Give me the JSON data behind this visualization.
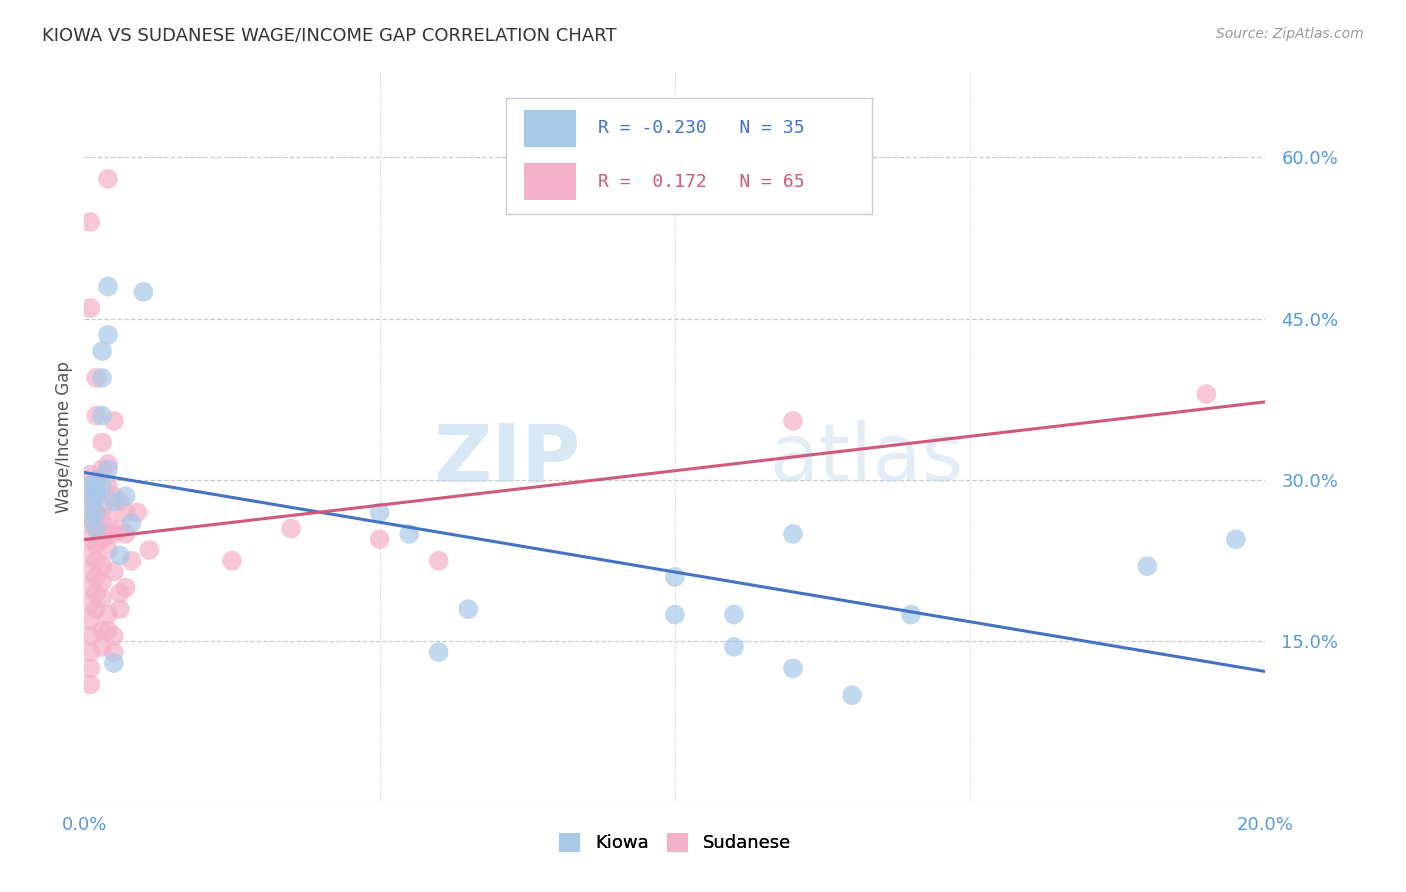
{
  "title": "KIOWA VS SUDANESE WAGE/INCOME GAP CORRELATION CHART",
  "source": "Source: ZipAtlas.com",
  "ylabel": "Wage/Income Gap",
  "xmin": 0.0,
  "xmax": 0.2,
  "ymin": 0.0,
  "ymax": 0.68,
  "yticks": [
    0.15,
    0.3,
    0.45,
    0.6
  ],
  "ytick_labels": [
    "15.0%",
    "30.0%",
    "45.0%",
    "60.0%"
  ],
  "xticks": [
    0.0,
    0.05,
    0.1,
    0.15,
    0.2
  ],
  "xtick_labels": [
    "0.0%",
    "",
    "",
    "",
    "20.0%"
  ],
  "kiowa_color": "#a8c8e8",
  "sudanese_color": "#f4b0c8",
  "kiowa_line_color": "#4472c4",
  "sudanese_line_color": "#d05878",
  "watermark_zip": "ZIP",
  "watermark_atlas": "atlas",
  "background_color": "#ffffff",
  "kiowa_points": [
    [
      0.001,
      0.295
    ],
    [
      0.001,
      0.28
    ],
    [
      0.001,
      0.265
    ],
    [
      0.002,
      0.3
    ],
    [
      0.002,
      0.285
    ],
    [
      0.002,
      0.27
    ],
    [
      0.002,
      0.255
    ],
    [
      0.002,
      0.29
    ],
    [
      0.003,
      0.42
    ],
    [
      0.003,
      0.395
    ],
    [
      0.003,
      0.36
    ],
    [
      0.003,
      0.295
    ],
    [
      0.004,
      0.435
    ],
    [
      0.004,
      0.31
    ],
    [
      0.004,
      0.48
    ],
    [
      0.005,
      0.28
    ],
    [
      0.005,
      0.13
    ],
    [
      0.006,
      0.23
    ],
    [
      0.007,
      0.285
    ],
    [
      0.008,
      0.26
    ],
    [
      0.01,
      0.475
    ],
    [
      0.05,
      0.27
    ],
    [
      0.055,
      0.25
    ],
    [
      0.06,
      0.14
    ],
    [
      0.065,
      0.18
    ],
    [
      0.1,
      0.21
    ],
    [
      0.1,
      0.175
    ],
    [
      0.11,
      0.175
    ],
    [
      0.11,
      0.145
    ],
    [
      0.12,
      0.25
    ],
    [
      0.12,
      0.125
    ],
    [
      0.13,
      0.1
    ],
    [
      0.14,
      0.175
    ],
    [
      0.18,
      0.22
    ],
    [
      0.195,
      0.245
    ]
  ],
  "sudanese_points": [
    [
      0.001,
      0.54
    ],
    [
      0.001,
      0.46
    ],
    [
      0.001,
      0.305
    ],
    [
      0.001,
      0.29
    ],
    [
      0.001,
      0.275
    ],
    [
      0.001,
      0.26
    ],
    [
      0.001,
      0.245
    ],
    [
      0.001,
      0.23
    ],
    [
      0.001,
      0.215
    ],
    [
      0.001,
      0.2
    ],
    [
      0.001,
      0.185
    ],
    [
      0.001,
      0.17
    ],
    [
      0.001,
      0.155
    ],
    [
      0.001,
      0.14
    ],
    [
      0.001,
      0.125
    ],
    [
      0.001,
      0.11
    ],
    [
      0.002,
      0.395
    ],
    [
      0.002,
      0.36
    ],
    [
      0.002,
      0.285
    ],
    [
      0.002,
      0.27
    ],
    [
      0.002,
      0.255
    ],
    [
      0.002,
      0.24
    ],
    [
      0.002,
      0.225
    ],
    [
      0.002,
      0.21
    ],
    [
      0.002,
      0.195
    ],
    [
      0.002,
      0.18
    ],
    [
      0.003,
      0.335
    ],
    [
      0.003,
      0.31
    ],
    [
      0.003,
      0.275
    ],
    [
      0.003,
      0.26
    ],
    [
      0.003,
      0.245
    ],
    [
      0.003,
      0.22
    ],
    [
      0.003,
      0.205
    ],
    [
      0.003,
      0.19
    ],
    [
      0.003,
      0.16
    ],
    [
      0.003,
      0.145
    ],
    [
      0.004,
      0.58
    ],
    [
      0.004,
      0.315
    ],
    [
      0.004,
      0.295
    ],
    [
      0.004,
      0.265
    ],
    [
      0.004,
      0.25
    ],
    [
      0.004,
      0.235
    ],
    [
      0.004,
      0.175
    ],
    [
      0.004,
      0.16
    ],
    [
      0.005,
      0.355
    ],
    [
      0.005,
      0.285
    ],
    [
      0.005,
      0.25
    ],
    [
      0.005,
      0.215
    ],
    [
      0.005,
      0.155
    ],
    [
      0.005,
      0.14
    ],
    [
      0.006,
      0.28
    ],
    [
      0.006,
      0.255
    ],
    [
      0.006,
      0.195
    ],
    [
      0.006,
      0.18
    ],
    [
      0.007,
      0.27
    ],
    [
      0.007,
      0.25
    ],
    [
      0.007,
      0.2
    ],
    [
      0.008,
      0.225
    ],
    [
      0.009,
      0.27
    ],
    [
      0.011,
      0.235
    ],
    [
      0.025,
      0.225
    ],
    [
      0.035,
      0.255
    ],
    [
      0.05,
      0.245
    ],
    [
      0.06,
      0.225
    ],
    [
      0.12,
      0.355
    ],
    [
      0.19,
      0.38
    ]
  ]
}
